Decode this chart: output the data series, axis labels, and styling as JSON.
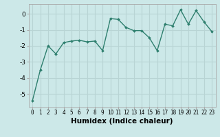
{
  "x": [
    0,
    1,
    2,
    3,
    4,
    5,
    6,
    7,
    8,
    9,
    10,
    11,
    12,
    13,
    14,
    15,
    16,
    17,
    18,
    19,
    20,
    21,
    22,
    23
  ],
  "y": [
    -5.4,
    -3.5,
    -2.0,
    -2.5,
    -1.8,
    -1.7,
    -1.65,
    -1.75,
    -1.7,
    -2.3,
    -0.3,
    -0.35,
    -0.85,
    -1.05,
    -1.05,
    -1.5,
    -2.3,
    -0.65,
    -0.75,
    0.25,
    -0.65,
    0.2,
    -0.5,
    -1.1
  ],
  "line_color": "#2e7f6e",
  "marker": "D",
  "marker_size": 2.0,
  "line_width": 1.0,
  "xlabel": "Humidex (Indice chaleur)",
  "xlabel_fontsize": 7.5,
  "xlim": [
    -0.5,
    23.5
  ],
  "ylim": [
    -5.8,
    0.6
  ],
  "yticks": [
    0,
    -1,
    -2,
    -3,
    -4,
    -5
  ],
  "xticks": [
    0,
    1,
    2,
    3,
    4,
    5,
    6,
    7,
    8,
    9,
    10,
    11,
    12,
    13,
    14,
    15,
    16,
    17,
    18,
    19,
    20,
    21,
    22,
    23
  ],
  "bg_color": "#cce8e8",
  "grid_color": "#b8d4d4",
  "tick_fontsize": 5.5,
  "ytick_fontsize": 6.5
}
